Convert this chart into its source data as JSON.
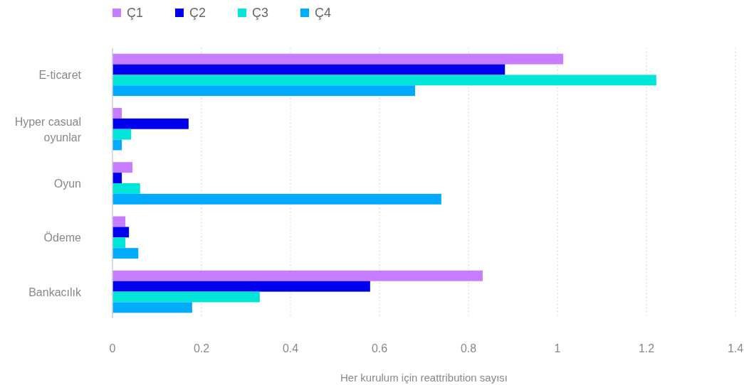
{
  "chart_data": {
    "type": "bar",
    "orientation": "horizontal",
    "xlabel": "Her kurulum için reattribution sayısı",
    "categories": [
      "E-ticaret",
      "Hyper casual oyunlar",
      "Oyun",
      "Ödeme",
      "Bankacılık"
    ],
    "series": [
      {
        "name": "Ç1",
        "color": "#c77dff",
        "values": [
          1.013,
          0.021,
          0.045,
          0.029,
          0.832
        ]
      },
      {
        "name": "Ç2",
        "color": "#0000ee",
        "values": [
          0.882,
          0.171,
          0.021,
          0.037,
          0.579
        ]
      },
      {
        "name": "Ç3",
        "color": "#00e5d8",
        "values": [
          1.222,
          0.042,
          0.062,
          0.029,
          0.331
        ]
      },
      {
        "name": "Ç4",
        "color": "#00aaff",
        "values": [
          0.68,
          0.021,
          0.739,
          0.058,
          0.179
        ]
      }
    ],
    "xlim": [
      0,
      1.4
    ],
    "xticks": [
      0,
      0.2,
      0.4,
      0.6,
      0.8,
      1,
      1.2,
      1.4
    ],
    "grid": "x",
    "legend": "top left"
  }
}
